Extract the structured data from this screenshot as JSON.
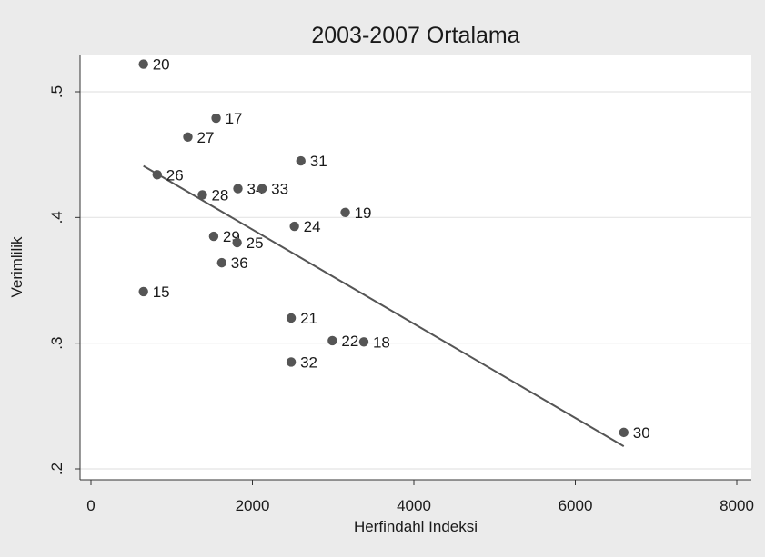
{
  "chart_data": {
    "type": "scatter",
    "title": "2003-2007 Ortalama",
    "xlabel": "Herfindahl Indeksi",
    "ylabel": "Verimlilik",
    "xlim": [
      0,
      8000
    ],
    "ylim": [
      0.2,
      0.53
    ],
    "xticks": [
      0,
      2000,
      4000,
      6000,
      8000
    ],
    "xtick_labels": [
      "0",
      "2000",
      "4000",
      "6000",
      "8000"
    ],
    "yticks": [
      0.2,
      0.3,
      0.4,
      0.5
    ],
    "ytick_labels": [
      ".2",
      ".3",
      ".4",
      ".5"
    ],
    "grid": true,
    "colors": {
      "background": "#ebebeb",
      "plot_area": "#ffffff",
      "marker": "#555555",
      "fit_line": "#555555",
      "text": "#1a1a1a"
    },
    "points": [
      {
        "label": "20",
        "x": 650,
        "y": 0.522
      },
      {
        "label": "17",
        "x": 1550,
        "y": 0.479
      },
      {
        "label": "27",
        "x": 1200,
        "y": 0.464
      },
      {
        "label": "31",
        "x": 2600,
        "y": 0.445
      },
      {
        "label": "26",
        "x": 820,
        "y": 0.434
      },
      {
        "label": "34",
        "x": 1820,
        "y": 0.423
      },
      {
        "label": "33",
        "x": 2120,
        "y": 0.423
      },
      {
        "label": "28",
        "x": 1380,
        "y": 0.418
      },
      {
        "label": "19",
        "x": 3150,
        "y": 0.404
      },
      {
        "label": "24",
        "x": 2520,
        "y": 0.393
      },
      {
        "label": "29",
        "x": 1520,
        "y": 0.385
      },
      {
        "label": "25",
        "x": 1810,
        "y": 0.38
      },
      {
        "label": "36",
        "x": 1620,
        "y": 0.364
      },
      {
        "label": "15",
        "x": 650,
        "y": 0.341
      },
      {
        "label": "21",
        "x": 2480,
        "y": 0.32
      },
      {
        "label": "22",
        "x": 2990,
        "y": 0.302
      },
      {
        "label": "18",
        "x": 3380,
        "y": 0.301
      },
      {
        "label": "32",
        "x": 2480,
        "y": 0.285
      },
      {
        "label": "30",
        "x": 6600,
        "y": 0.229
      }
    ],
    "fit_line": {
      "x": [
        650,
        6600
      ],
      "y": [
        0.441,
        0.218
      ]
    }
  }
}
